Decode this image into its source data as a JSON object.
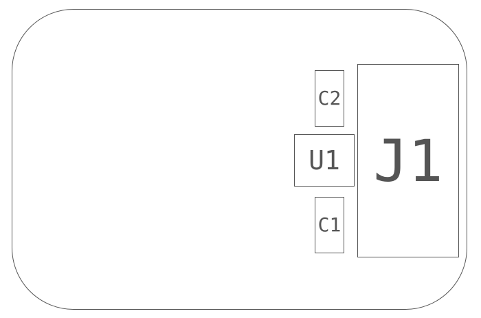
{
  "board": {
    "components": [
      {
        "ref": "C2"
      },
      {
        "ref": "U1"
      },
      {
        "ref": "C1"
      },
      {
        "ref": "J1"
      }
    ]
  },
  "colors": {
    "outline": "#555555",
    "text": "#555555",
    "background": "#ffffff"
  }
}
